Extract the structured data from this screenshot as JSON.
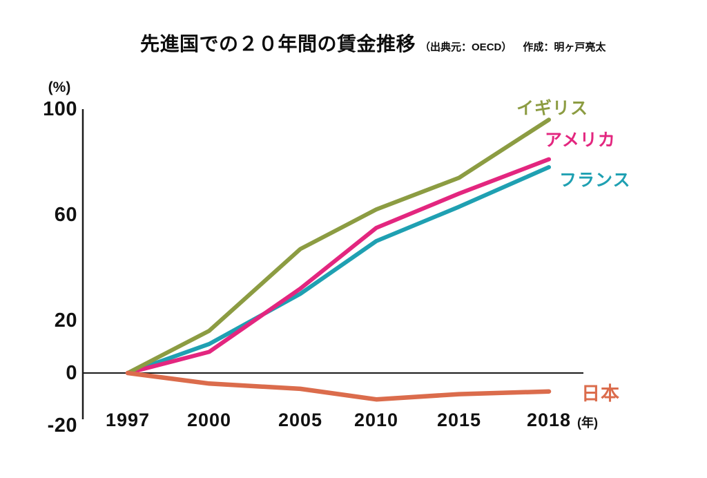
{
  "title": {
    "main": "先進国での２０年間の賃金推移",
    "source": "（出典元：OECD）",
    "credit": "作成：明ヶ戸亮太"
  },
  "axes": {
    "y_unit": "(%)",
    "x_unit": "(年)"
  },
  "chart_data": {
    "type": "line",
    "title": "先進国での２０年間の賃金推移",
    "subtitle": "（出典元：OECD）　作成：明ヶ戸亮太",
    "xlabel": "(年)",
    "ylabel": "(%)",
    "x": [
      1997,
      2000,
      2005,
      2010,
      2015,
      2018
    ],
    "x_tick_labels": [
      "1997",
      "2000",
      "2005",
      "2010",
      "2015",
      "2018"
    ],
    "y_ticks": [
      100,
      60,
      20,
      0,
      -20
    ],
    "ylim": [
      -20,
      105
    ],
    "grid": false,
    "legend_position": "labels-at-line-ends",
    "series": [
      {
        "name": "イギリス",
        "color": "#8C9C42",
        "values": [
          0,
          16,
          47,
          62,
          74,
          96
        ]
      },
      {
        "name": "アメリカ",
        "color": "#E3267F",
        "values": [
          0,
          8,
          32,
          55,
          68,
          81
        ]
      },
      {
        "name": "フランス",
        "color": "#1FA0B2",
        "values": [
          0,
          11,
          30,
          50,
          63,
          78
        ]
      },
      {
        "name": "日本",
        "color": "#DB6C4C",
        "values": [
          0,
          -4,
          -6,
          -10,
          -8,
          -7
        ]
      }
    ],
    "colors": {
      "uk": "#8C9C42",
      "usa": "#E3267F",
      "france": "#1FA0B2",
      "japan": "#DB6C4C",
      "axis": "#1a1a1a"
    }
  }
}
